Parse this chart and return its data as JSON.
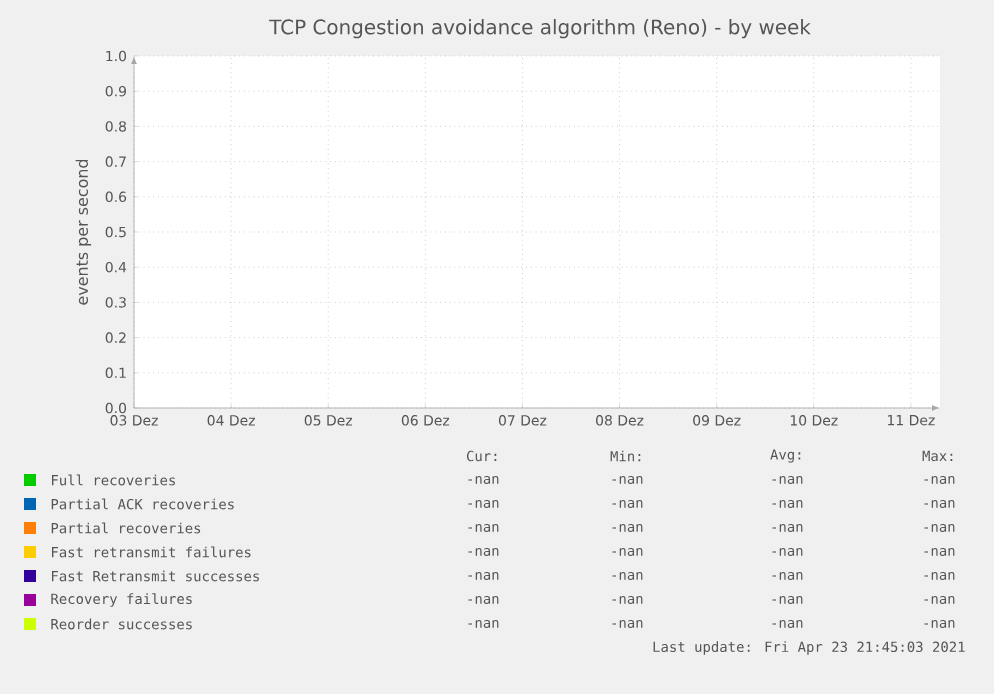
{
  "chart_data": {
    "type": "line",
    "title": "TCP Congestion avoidance algorithm (Reno) - by week",
    "ylabel": "events per second",
    "categories": [
      "03 Dez",
      "04 Dez",
      "05 Dez",
      "06 Dez",
      "07 Dez",
      "08 Dez",
      "09 Dez",
      "10 Dez",
      "11 Dez"
    ],
    "ylim": [
      0,
      1
    ],
    "yticks": [
      {
        "value": 0,
        "label": "0.0"
      },
      {
        "value": 0.1,
        "label": "0.1"
      },
      {
        "value": 0.2,
        "label": "0.2"
      },
      {
        "value": 0.3,
        "label": "0.3"
      },
      {
        "value": 0.4,
        "label": "0.4"
      },
      {
        "value": 0.5,
        "label": "0.5"
      },
      {
        "value": 0.6,
        "label": "0.6"
      },
      {
        "value": 0.7,
        "label": "0.7"
      },
      {
        "value": 0.8,
        "label": "0.8"
      },
      {
        "value": 0.9,
        "label": "0.9"
      },
      {
        "value": 1,
        "label": "1.0"
      }
    ],
    "grid": true,
    "legend": "bottom",
    "series": [
      {
        "name": "Full recoveries",
        "color": "#00cc00",
        "values": [
          null,
          null,
          null,
          null,
          null,
          null,
          null,
          null,
          null
        ]
      },
      {
        "name": "Partial ACK recoveries",
        "color": "#0066b3",
        "values": [
          null,
          null,
          null,
          null,
          null,
          null,
          null,
          null,
          null
        ]
      },
      {
        "name": "Partial recoveries",
        "color": "#ff8000",
        "values": [
          null,
          null,
          null,
          null,
          null,
          null,
          null,
          null,
          null
        ]
      },
      {
        "name": "Fast retransmit failures",
        "color": "#ffcc00",
        "values": [
          null,
          null,
          null,
          null,
          null,
          null,
          null,
          null,
          null
        ]
      },
      {
        "name": "Fast Retransmit successes",
        "color": "#330099",
        "values": [
          null,
          null,
          null,
          null,
          null,
          null,
          null,
          null,
          null
        ]
      },
      {
        "name": "Recovery failures",
        "color": "#990099",
        "values": [
          null,
          null,
          null,
          null,
          null,
          null,
          null,
          null,
          null
        ]
      },
      {
        "name": "Reorder successes",
        "color": "#ccff00",
        "values": [
          null,
          null,
          null,
          null,
          null,
          null,
          null,
          null,
          null
        ]
      }
    ],
    "annotations": [
      "Cur:",
      "Min:",
      "Avg:",
      "Max:",
      "-nan",
      "-nan",
      "-nan",
      "-nan",
      "-nan",
      "-nan",
      "-nan",
      "-nan",
      "-nan",
      "-nan",
      "-nan",
      "-nan",
      "-nan",
      "-nan",
      "-nan",
      "-nan",
      "-nan",
      "-nan",
      "-nan",
      "-nan",
      "-nan",
      "-nan",
      "-nan",
      "-nan",
      "-nan",
      "-nan",
      "-nan",
      "-nan",
      "Last update: Fri Apr 23 21:45:03 2021"
    ]
  }
}
